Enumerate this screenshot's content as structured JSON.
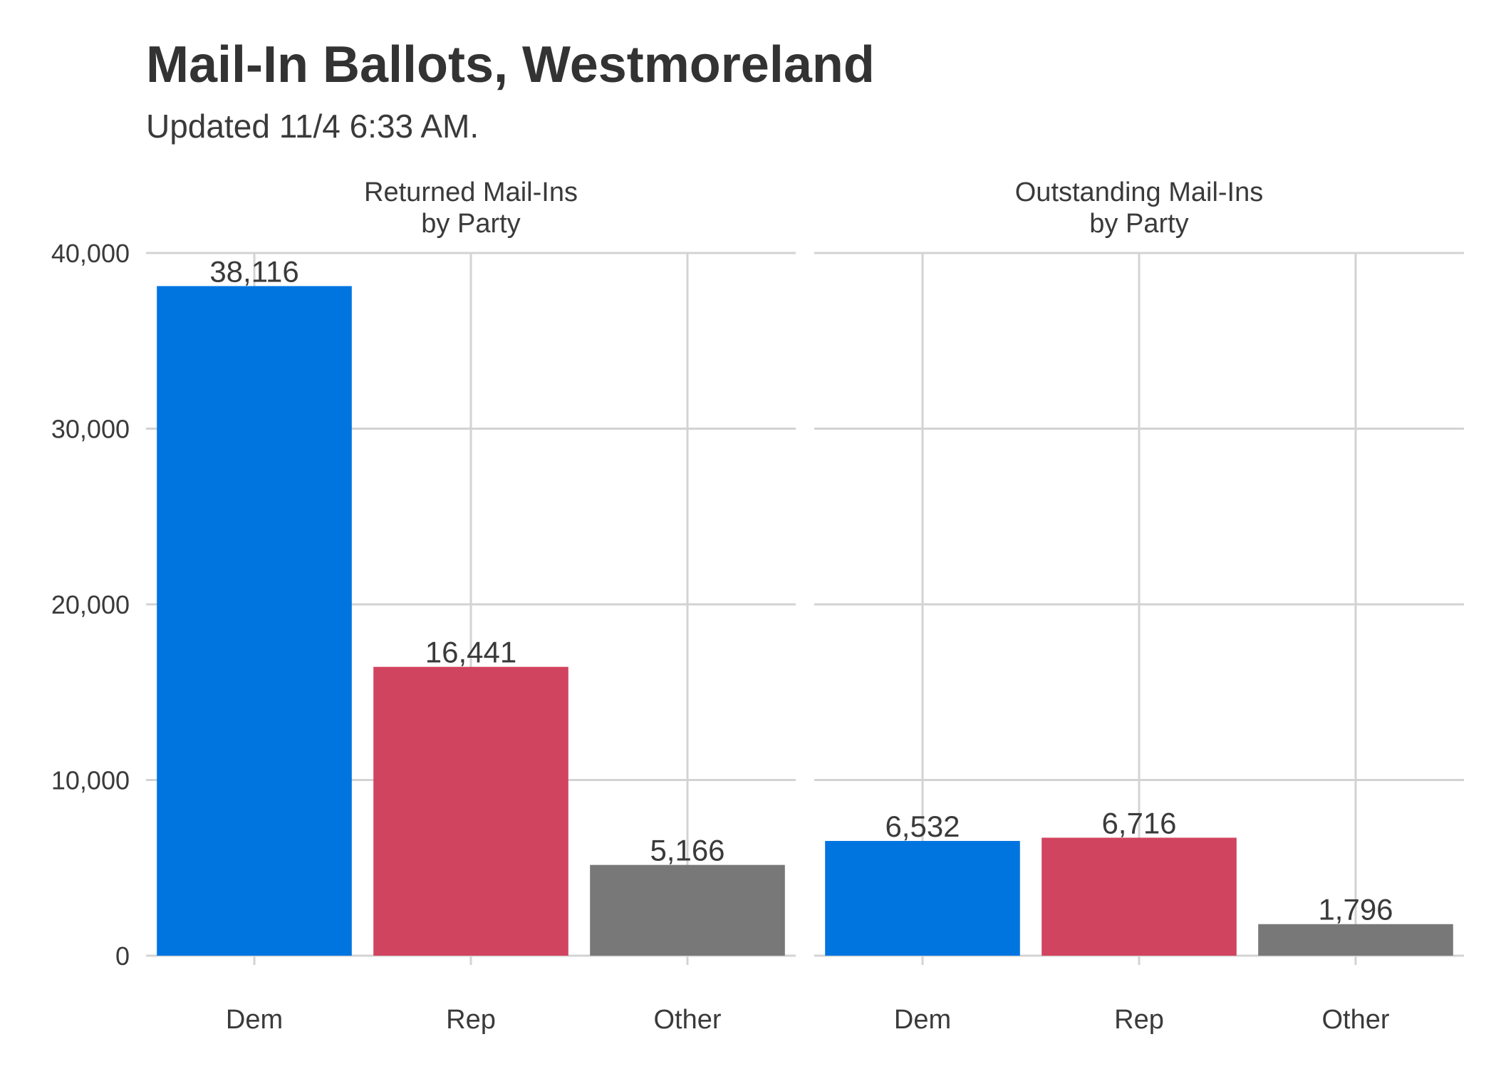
{
  "title": "Mail-In Ballots, Westmoreland",
  "subtitle": "Updated 11/4 6:33 AM.",
  "chart_data": {
    "type": "bar",
    "categories": [
      "Dem",
      "Rep",
      "Other"
    ],
    "colors": {
      "Dem": "#0075e0",
      "Rep": "#d0445f",
      "Other": "#787878"
    },
    "ylim": [
      0,
      40000
    ],
    "yticks": [
      0,
      10000,
      20000,
      30000,
      40000
    ],
    "ytick_labels": [
      "0",
      "10,000",
      "20,000",
      "30,000",
      "40,000"
    ],
    "grid": true,
    "panels": [
      {
        "title_lines": [
          "Returned Mail-Ins",
          "by Party"
        ],
        "values": [
          38116,
          16441,
          5166
        ],
        "labels": [
          "38,116",
          "16,441",
          "5,166"
        ]
      },
      {
        "title_lines": [
          "Outstanding Mail-Ins",
          "by Party"
        ],
        "values": [
          6532,
          6716,
          1796
        ],
        "labels": [
          "6,532",
          "6,716",
          "1,796"
        ]
      }
    ]
  }
}
